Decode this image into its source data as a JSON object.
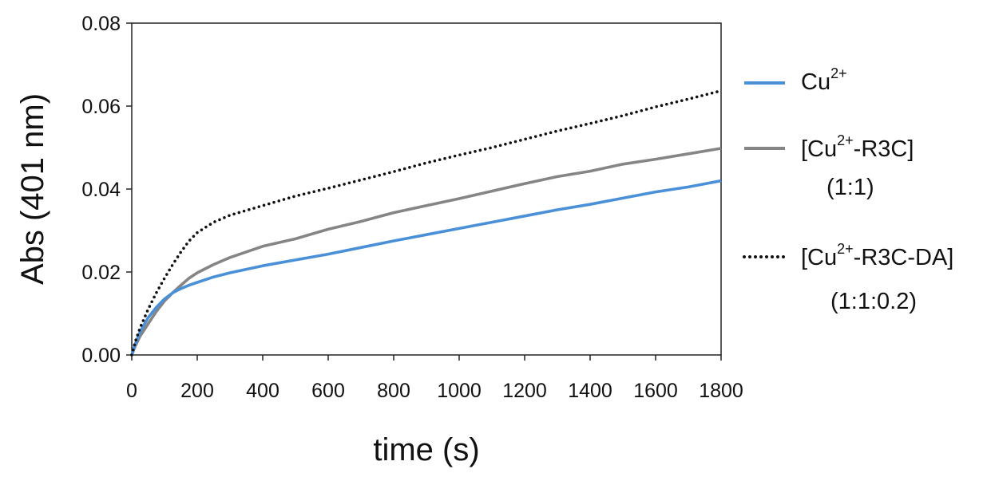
{
  "chart_data": {
    "type": "line",
    "title": "",
    "xlabel": "time (s)",
    "ylabel": "Abs (401 nm)",
    "xlim": [
      0,
      1800
    ],
    "ylim": [
      0,
      0.08
    ],
    "x_ticks": [
      "0",
      "200",
      "400",
      "600",
      "800",
      "1000",
      "1200",
      "1400",
      "1600",
      "1800"
    ],
    "y_ticks": [
      "0.00",
      "0.02",
      "0.04",
      "0.06",
      "0.08"
    ],
    "grid": false,
    "legend_position": "right",
    "series": [
      {
        "name": "Cu2+",
        "legend_lines": [
          {
            "base": "Cu",
            "sup": "2+",
            "rest": ""
          }
        ],
        "color": "#4a90d9",
        "style": "solid",
        "x": [
          0,
          10,
          25,
          50,
          75,
          100,
          125,
          150,
          175,
          200,
          250,
          300,
          400,
          500,
          600,
          700,
          800,
          900,
          1000,
          1100,
          1200,
          1300,
          1400,
          1500,
          1600,
          1700,
          1800
        ],
        "y": [
          0.0,
          0.0025,
          0.0055,
          0.009,
          0.0115,
          0.0135,
          0.015,
          0.016,
          0.0168,
          0.0175,
          0.0188,
          0.0198,
          0.0215,
          0.0229,
          0.0243,
          0.0259,
          0.0275,
          0.029,
          0.0305,
          0.032,
          0.0335,
          0.035,
          0.0363,
          0.0378,
          0.0393,
          0.0405,
          0.042
        ]
      },
      {
        "name": "[Cu2+-R3C] (1:1)",
        "legend_lines": [
          {
            "base": "[Cu",
            "sup": "2+",
            "rest": "-R3C]"
          },
          {
            "base": "(1:1)",
            "sup": "",
            "rest": ""
          }
        ],
        "color": "#858585",
        "style": "solid",
        "x": [
          0,
          10,
          25,
          50,
          75,
          100,
          125,
          150,
          175,
          200,
          250,
          300,
          400,
          500,
          600,
          700,
          800,
          900,
          1000,
          1100,
          1200,
          1300,
          1400,
          1500,
          1600,
          1700,
          1800
        ],
        "y": [
          0.0,
          0.002,
          0.0045,
          0.0075,
          0.0105,
          0.013,
          0.015,
          0.0168,
          0.0185,
          0.0198,
          0.0218,
          0.0235,
          0.0262,
          0.028,
          0.0303,
          0.0322,
          0.0343,
          0.036,
          0.0377,
          0.0395,
          0.0413,
          0.043,
          0.0443,
          0.046,
          0.0472,
          0.0485,
          0.0498
        ]
      },
      {
        "name": "[Cu2+-R3C-DA] (1:1:0.2)",
        "legend_lines": [
          {
            "base": "[Cu",
            "sup": "2+",
            "rest": "-R3C-DA]"
          },
          {
            "base": "(1:1:0.2)",
            "sup": "",
            "rest": ""
          }
        ],
        "color": "#111111",
        "style": "dotted",
        "x": [
          0,
          10,
          25,
          50,
          75,
          100,
          125,
          150,
          175,
          200,
          250,
          300,
          400,
          500,
          600,
          700,
          800,
          900,
          1000,
          1100,
          1200,
          1300,
          1400,
          1500,
          1600,
          1700,
          1800
        ],
        "y": [
          0.0,
          0.003,
          0.0065,
          0.011,
          0.015,
          0.0185,
          0.0218,
          0.0248,
          0.0275,
          0.0295,
          0.032,
          0.0337,
          0.036,
          0.0383,
          0.0402,
          0.0422,
          0.0442,
          0.0463,
          0.0482,
          0.05,
          0.052,
          0.054,
          0.0558,
          0.0577,
          0.0598,
          0.0617,
          0.0637
        ]
      }
    ]
  }
}
